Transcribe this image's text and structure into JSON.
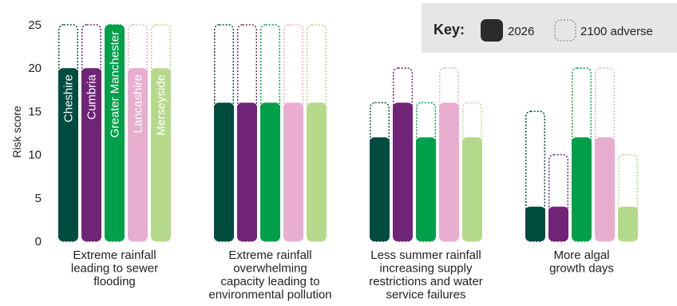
{
  "chart_data": {
    "type": "bar",
    "ylabel": "Risk score",
    "ylim": [
      0,
      25
    ],
    "yticks": [
      0,
      5,
      10,
      15,
      20,
      25
    ],
    "grid": false,
    "legend_position": "top-right",
    "legend": {
      "title": "Key:",
      "items": [
        {
          "label": "2026",
          "style": "solid"
        },
        {
          "label": "2100 adverse",
          "style": "dotted-outline"
        }
      ]
    },
    "regions": [
      "Cheshire",
      "Cumbria",
      "Greater Manchester",
      "Lancashire",
      "Merseyside"
    ],
    "region_colors": [
      "#004c3f",
      "#6f2477",
      "#00a04a",
      "#e8adcf",
      "#b5d98a"
    ],
    "region_label_group": 0,
    "groups": [
      {
        "label_lines": [
          "Extreme rainfall",
          "leading to sewer",
          "flooding"
        ],
        "values_2026": [
          20,
          20,
          25,
          20,
          20
        ],
        "values_2100": [
          25,
          25,
          25,
          25,
          25
        ]
      },
      {
        "label_lines": [
          "Extreme rainfall",
          "overwhelming",
          "capacity leading to",
          "environmental pollution"
        ],
        "values_2026": [
          16,
          16,
          16,
          16,
          16
        ],
        "values_2100": [
          25,
          25,
          25,
          25,
          25
        ]
      },
      {
        "label_lines": [
          "Less summer rainfall",
          "increasing supply",
          "restrictions and water",
          "service failures"
        ],
        "values_2026": [
          12,
          16,
          12,
          16,
          12
        ],
        "values_2100": [
          16,
          20,
          16,
          20,
          16
        ]
      },
      {
        "label_lines": [
          "More algal",
          "growth days"
        ],
        "values_2026": [
          4,
          4,
          12,
          12,
          4
        ],
        "values_2100": [
          15,
          10,
          20,
          20,
          10
        ]
      }
    ]
  }
}
